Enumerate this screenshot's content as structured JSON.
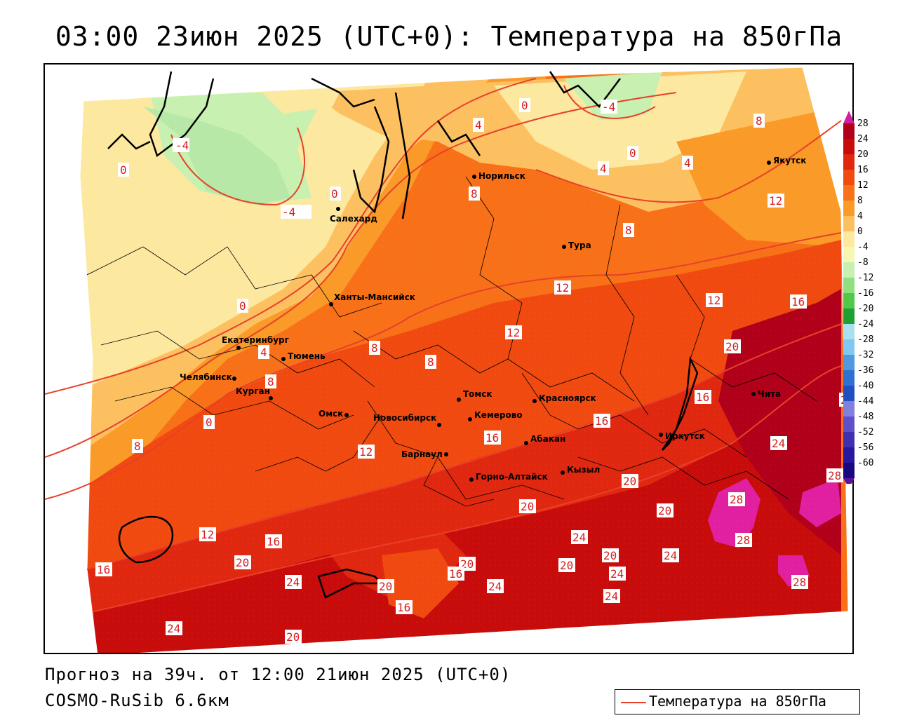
{
  "title": "03:00 23июн 2025 (UTC+0): Температура на 850гПа",
  "forecast_line": "Прогноз на 39ч. от 12:00 21июн 2025 (UTC+0)",
  "model_line": "COSMO-RuSib 6.6км",
  "legend": {
    "label": "Температура на 850гПа",
    "line_color": "#e8402a"
  },
  "colorbar": {
    "ticks": [
      "28",
      "24",
      "20",
      "16",
      "12",
      "8",
      "4",
      "0",
      "-4",
      "-8",
      "-12",
      "-16",
      "-20",
      "-24",
      "-28",
      "-32",
      "-36",
      "-40",
      "-44",
      "-48",
      "-52",
      "-56",
      "-60"
    ],
    "colors": [
      "#b0001a",
      "#c80c0c",
      "#e02810",
      "#f04a10",
      "#f87018",
      "#fa9a28",
      "#fcc060",
      "#fde8a0",
      "#f6f8b0",
      "#c8f0b0",
      "#90e080",
      "#50c848",
      "#20a030",
      "#a8e0f0",
      "#80c8f0",
      "#5098e0",
      "#3070d0",
      "#2050c0",
      "#8080e0",
      "#6050c8",
      "#4030b0",
      "#2818a0",
      "#180880"
    ],
    "top_arrow_color": "#d020a0",
    "bottom_arrow_color": "#6010a0"
  },
  "cities": [
    {
      "name": "Норильск"
    },
    {
      "name": "Якутск"
    },
    {
      "name": "Салехард"
    },
    {
      "name": "Тура"
    },
    {
      "name": "Ханты-Мансийск"
    },
    {
      "name": "Екатеринбург"
    },
    {
      "name": "Тюмень"
    },
    {
      "name": "Челябинск"
    },
    {
      "name": "Курган"
    },
    {
      "name": "Омск"
    },
    {
      "name": "Новосибирск"
    },
    {
      "name": "Томск"
    },
    {
      "name": "Кемерово"
    },
    {
      "name": "Красноярск"
    },
    {
      "name": "Барнаул"
    },
    {
      "name": "Абакан"
    },
    {
      "name": "Горно-Алтайск"
    },
    {
      "name": "Кызыл"
    },
    {
      "name": "Иркутск"
    },
    {
      "name": "Чита"
    }
  ],
  "contour_labels": [
    "-4",
    "0",
    "4",
    "8",
    "12",
    "16",
    "20",
    "24",
    "28",
    "-4",
    "0",
    "4",
    "8",
    "12",
    "16",
    "20",
    "24",
    "28",
    "20",
    "16",
    "24",
    "20",
    "24",
    "16",
    "20",
    "24",
    "28",
    "12",
    "16",
    "8",
    "20",
    "24",
    "12",
    "8",
    "0",
    "4",
    "8",
    "16",
    "20",
    "24",
    "28",
    "12",
    "12",
    "16",
    "20",
    "24",
    "20",
    "16",
    "8",
    "4",
    "0",
    "-4"
  ]
}
